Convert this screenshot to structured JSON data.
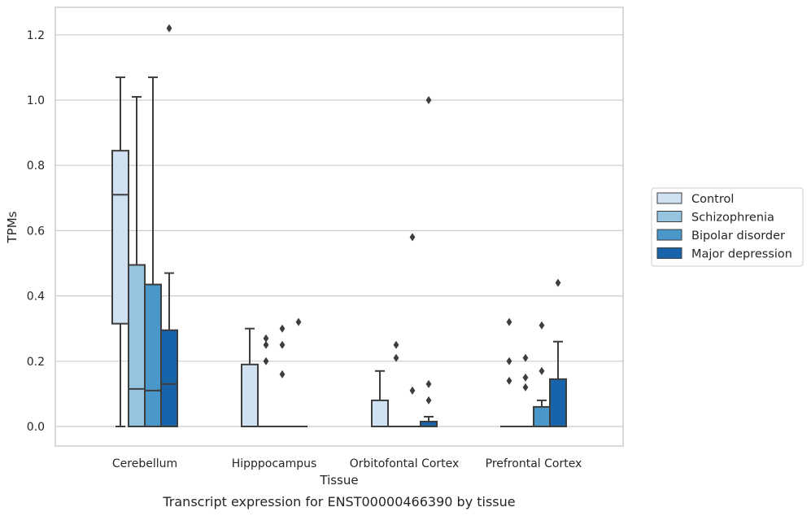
{
  "caption": "Transcript expression for ENST00000466390 by tissue",
  "chart_data": {
    "type": "boxplot",
    "title": "",
    "xlabel": "Tissue",
    "ylabel": "TPMs",
    "ylim": [
      -0.06,
      1.285
    ],
    "yticks": [
      0.0,
      0.2,
      0.4,
      0.6,
      0.8,
      1.0,
      1.2
    ],
    "ytick_labels": [
      "0.0",
      "0.2",
      "0.4",
      "0.6",
      "0.8",
      "1.0",
      "1.2"
    ],
    "grid": "horizontal",
    "legend_position": "right",
    "categories": [
      "Cerebellum",
      "Hipppocampus",
      "Orbitofontal Cortex",
      "Prefrontal Cortex"
    ],
    "series": [
      {
        "name": "Control",
        "color": "#d0e1f2",
        "boxes": [
          {
            "min": 0.0,
            "q1": 0.315,
            "median": 0.71,
            "q3": 0.845,
            "max": 1.07,
            "outliers": []
          },
          {
            "min": 0.0,
            "q1": 0.0,
            "median": 0.0,
            "q3": 0.19,
            "max": 0.3,
            "outliers": []
          },
          {
            "min": 0.0,
            "q1": 0.0,
            "median": 0.0,
            "q3": 0.08,
            "max": 0.17,
            "outliers": []
          },
          {
            "min": 0.0,
            "q1": 0.0,
            "median": 0.0,
            "q3": 0.0,
            "max": 0.0,
            "outliers": [
              0.14,
              0.2,
              0.32
            ]
          }
        ]
      },
      {
        "name": "Schizophrenia",
        "color": "#94c4df",
        "boxes": [
          {
            "min": 0.0,
            "q1": 0.0,
            "median": 0.115,
            "q3": 0.495,
            "max": 1.01,
            "outliers": []
          },
          {
            "min": 0.0,
            "q1": 0.0,
            "median": 0.0,
            "q3": 0.0,
            "max": 0.0,
            "outliers": [
              0.2,
              0.25,
              0.27
            ]
          },
          {
            "min": 0.0,
            "q1": 0.0,
            "median": 0.0,
            "q3": 0.0,
            "max": 0.0,
            "outliers": [
              0.21,
              0.25
            ]
          },
          {
            "min": 0.0,
            "q1": 0.0,
            "median": 0.0,
            "q3": 0.0,
            "max": 0.0,
            "outliers": [
              0.12,
              0.15,
              0.21
            ]
          }
        ]
      },
      {
        "name": "Bipolar disorder",
        "color": "#4a98c9",
        "boxes": [
          {
            "min": 0.0,
            "q1": 0.0,
            "median": 0.11,
            "q3": 0.435,
            "max": 1.07,
            "outliers": []
          },
          {
            "min": 0.0,
            "q1": 0.0,
            "median": 0.0,
            "q3": 0.0,
            "max": 0.0,
            "outliers": [
              0.16,
              0.25,
              0.3
            ]
          },
          {
            "min": 0.0,
            "q1": 0.0,
            "median": 0.0,
            "q3": 0.0,
            "max": 0.0,
            "outliers": [
              0.11,
              0.58
            ]
          },
          {
            "min": 0.0,
            "q1": 0.0,
            "median": 0.0,
            "q3": 0.06,
            "max": 0.08,
            "outliers": [
              0.17,
              0.31
            ]
          }
        ]
      },
      {
        "name": "Major depression",
        "color": "#1764ab",
        "boxes": [
          {
            "min": 0.0,
            "q1": 0.0,
            "median": 0.13,
            "q3": 0.295,
            "max": 0.47,
            "outliers": [
              1.22
            ]
          },
          {
            "min": 0.0,
            "q1": 0.0,
            "median": 0.0,
            "q3": 0.0,
            "max": 0.0,
            "outliers": [
              0.32
            ]
          },
          {
            "min": 0.0,
            "q1": 0.0,
            "median": 0.0,
            "q3": 0.015,
            "max": 0.03,
            "outliers": [
              0.08,
              0.13,
              1.0
            ]
          },
          {
            "min": 0.0,
            "q1": 0.0,
            "median": 0.0,
            "q3": 0.145,
            "max": 0.26,
            "outliers": [
              0.44
            ]
          }
        ]
      }
    ]
  }
}
